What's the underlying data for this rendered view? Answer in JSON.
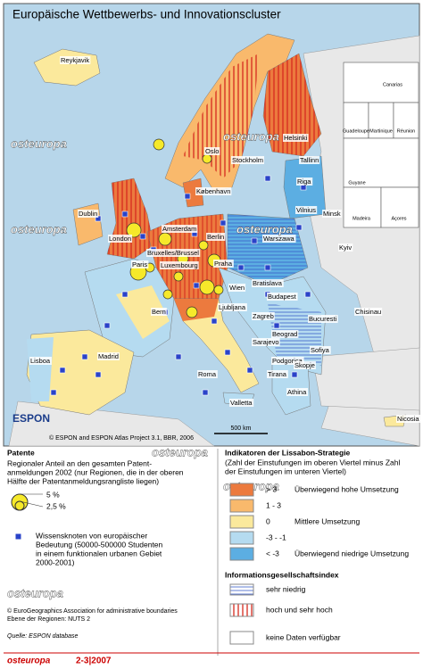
{
  "title": "Europäische Wettbewerbs- und Innovationscluster",
  "watermark": "osteuropa",
  "cities": [
    "Reykjavik",
    "Helsinki",
    "Oslo",
    "Stockholm",
    "Tallinn",
    "Riga",
    "Dublin",
    "København",
    "Vilnius",
    "London",
    "Amsterdam",
    "Berlin",
    "Warszawa",
    "Minsk",
    "Kyiv",
    "Bruxelles/Brussel",
    "Luxembourg",
    "Paris",
    "Praha",
    "Wien",
    "Bratislava",
    "Budapest",
    "Chisinau",
    "Bern",
    "Ljubljana",
    "Zagreb",
    "Bucuresti",
    "Beograd",
    "Sarajevo",
    "Sofiya",
    "Podgorica",
    "Skopje",
    "Tirana",
    "Lisboa",
    "Madrid",
    "Roma",
    "Valletta",
    "Athina",
    "Nicosia"
  ],
  "insets": [
    "Canarias",
    "Guadeloupe",
    "Martinique",
    "Réunion",
    "Guyane",
    "Madeira",
    "Açores"
  ],
  "logo": "ESPON",
  "copyright": "© ESPON and ESPON Atlas Project 3.1, BBR, 2006",
  "scale": "500 km",
  "legend": {
    "patents": {
      "title": "Patente",
      "description": [
        "Regionaler Anteil an den gesamten Patent-",
        "anmeldungen 2002 (nur Regionen, die in der oberen",
        "Hälfte der Patentanmeldungsrangliste liegen)"
      ],
      "sizes": [
        "5 %",
        "2,5 %"
      ]
    },
    "knowledge": {
      "description": [
        "Wissensknoten von europäischer",
        "Bedeutung (50000-500000 Studenten",
        "in einem funktionalen urbanen Gebiet",
        "2000-2001)"
      ]
    },
    "lisbon": {
      "title": "Indikatoren der Lissabon-Strategie",
      "subtitle": [
        "(Zahl der Einstufungen im oberen Viertel minus Zahl",
        "der Einstufungen im unteren Viertel)"
      ],
      "classes": [
        {
          "range": "> 3",
          "label": "Überwiegend hohe Umsetzung",
          "color": "#ec7a3e"
        },
        {
          "range": "1 - 3",
          "label": null,
          "color": "#f9b96c"
        },
        {
          "range": "0",
          "label": "Mittlere Umsetzung",
          "color": "#fbe99c"
        },
        {
          "range": "-3 - -1",
          "label": null,
          "color": "#b5dbf0"
        },
        {
          "range": "< -3",
          "label": "Überwiegend niedrige Umsetzung",
          "color": "#5caee2"
        }
      ]
    },
    "info": {
      "title": "Informationsgesellschaftsindex",
      "items": [
        "sehr niedrig",
        "hoch und sehr hoch"
      ]
    },
    "nodata": "keine Daten verfügbar"
  },
  "footer": {
    "boundaries": "© EuroGeographics Association for administrative boundaries",
    "level": "Ebene der Regionen: NUTS 2",
    "source": "Quelle: ESPON database",
    "issue": "2-3|2007"
  }
}
